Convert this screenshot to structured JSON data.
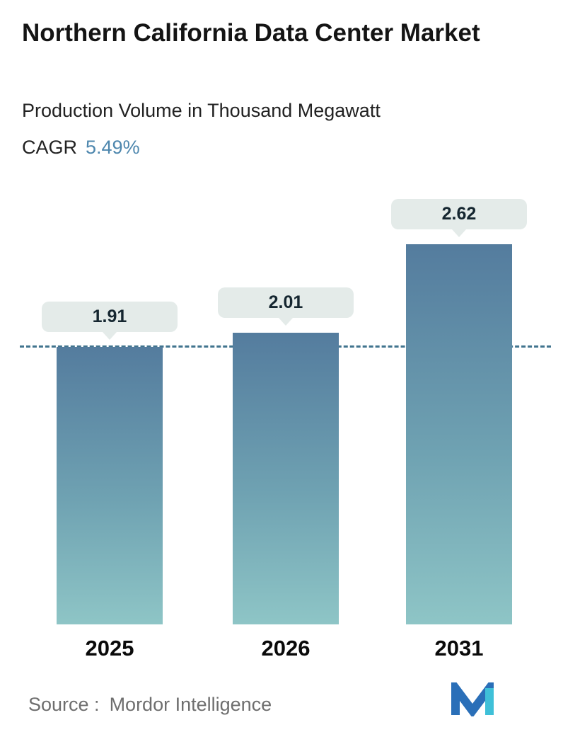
{
  "header": {
    "title": "Northern California Data Center Market",
    "subtitle": "Production Volume in Thousand Megawatt",
    "cagr_label": "CAGR",
    "cagr_value": "5.49%"
  },
  "chart_data": {
    "type": "bar",
    "title": "Northern California Data Center Market",
    "subtitle": "Production Volume in Thousand Megawatt",
    "cagr": "5.49%",
    "categories": [
      "2025",
      "2026",
      "2031"
    ],
    "values": [
      1.91,
      2.01,
      2.62
    ],
    "value_labels": [
      "1.91",
      "2.01",
      "2.62"
    ],
    "ylabel": "Production Volume (Thousand Megawatt)",
    "ylim": [
      0,
      3
    ],
    "grid": false,
    "legend": "none",
    "reference_value": 1.91,
    "reference_line_style": "dashed",
    "reference_line_color": "#41748e",
    "bar_color_top": "#547c9e",
    "bar_color_bottom": "#8ec5c6",
    "tooltip_bg": "#e4ebe9",
    "accent_blue": "#4e87ae"
  },
  "footer": {
    "source_label": "Source :",
    "source_value": "Mordor Intelligence",
    "logo_name": "mordor-intelligence-logo"
  }
}
